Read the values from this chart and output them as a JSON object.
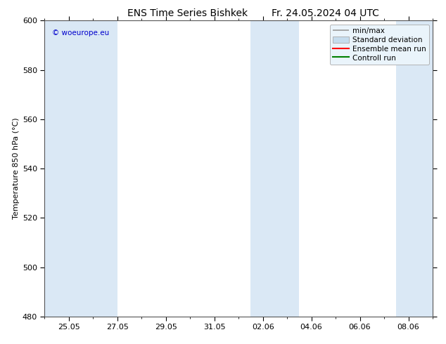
{
  "title_left": "ENS Time Series Bishkek",
  "title_right": "Fr. 24.05.2024 04 UTC",
  "ylabel": "Temperature 850 hPa (°C)",
  "watermark": "© woeurope.eu",
  "watermark_color": "#0000cc",
  "ylim": [
    480,
    600
  ],
  "yticks": [
    480,
    500,
    520,
    540,
    560,
    580,
    600
  ],
  "background_color": "#ffffff",
  "plot_bg_color": "#ffffff",
  "shaded_band_color": "#dae8f5",
  "shaded_ranges": [
    [
      0,
      2
    ],
    [
      2,
      3
    ],
    [
      8.5,
      10.5
    ],
    [
      14.5,
      16
    ]
  ],
  "xtick_positions": [
    1,
    3,
    5,
    7,
    9,
    11,
    13,
    15
  ],
  "xtick_labels": [
    "25.05",
    "27.05",
    "29.05",
    "31.05",
    "02.06",
    "04.06",
    "06.06",
    "08.06"
  ],
  "legend_entries": [
    {
      "label": "min/max",
      "color": "#999999"
    },
    {
      "label": "Standard deviation",
      "color": "#c5dced"
    },
    {
      "label": "Ensemble mean run",
      "color": "#ff0000"
    },
    {
      "label": "Controll run",
      "color": "#008000"
    }
  ],
  "title_fontsize": 10,
  "tick_fontsize": 8,
  "ylabel_fontsize": 8,
  "legend_fontsize": 7.5
}
